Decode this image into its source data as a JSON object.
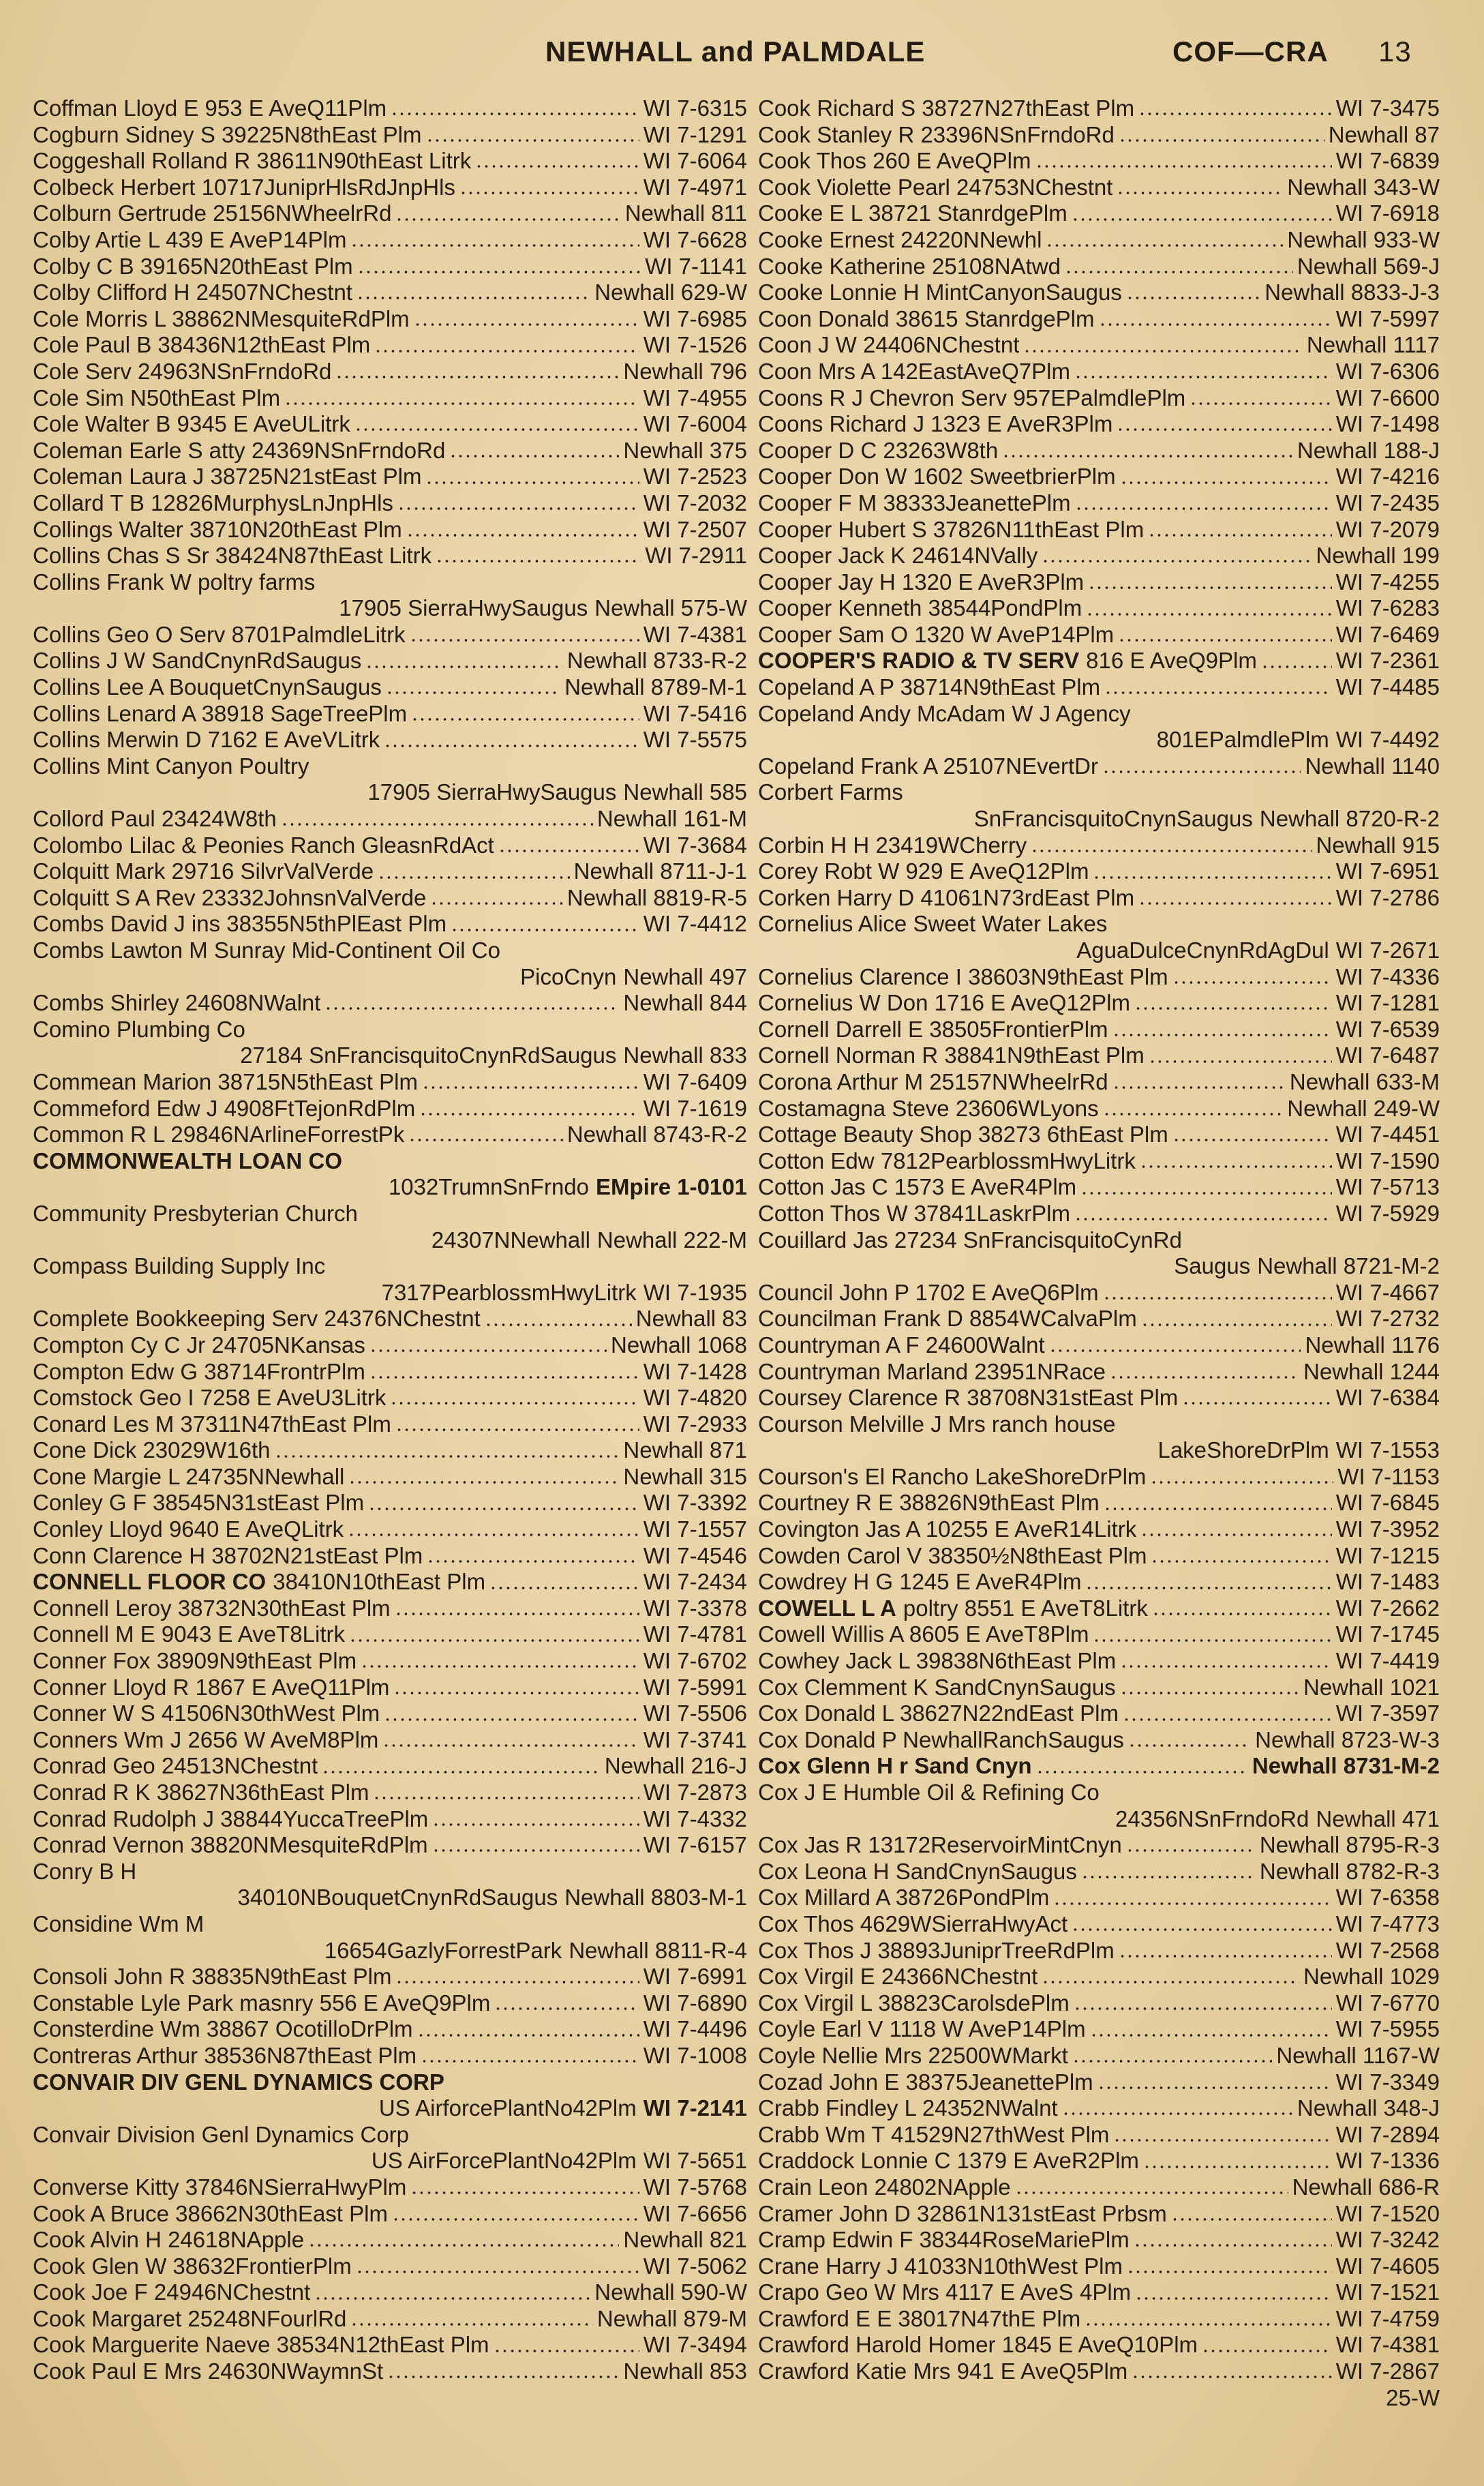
{
  "header": {
    "title": "NEWHALL and PALMDALE",
    "range": "COF—CRA",
    "page": "13"
  },
  "columns": [
    {
      "entries": [
        {
          "text": "Coffman Lloyd E 953 E AveQ11Plm",
          "phone": "WI 7-6315"
        },
        {
          "text": "Cogburn Sidney S 39225N8thEast Plm",
          "phone": "WI 7-1291"
        },
        {
          "text": "Coggeshall Rolland R 38611N90thEast Litrk",
          "phone": "WI 7-6064"
        },
        {
          "text": "Colbeck Herbert 10717JuniprHlsRdJnpHls",
          "phone": "WI 7-4971"
        },
        {
          "text": "Colburn Gertrude 25156NWheelrRd",
          "phone": "Newhall 811"
        },
        {
          "text": "Colby Artie L 439 E AveP14Plm",
          "phone": "WI 7-6628"
        },
        {
          "text": "Colby C B 39165N20thEast Plm",
          "phone": "WI 7-1141"
        },
        {
          "text": "Colby Clifford H 24507NChestnt",
          "phone": "Newhall 629-W"
        },
        {
          "text": "Cole Morris L 38862NMesquiteRdPlm",
          "phone": "WI 7-6985"
        },
        {
          "text": "Cole Paul B 38436N12thEast Plm",
          "phone": "WI 7-1526"
        },
        {
          "text": "Cole Serv 24963NSnFrndoRd",
          "phone": "Newhall 796"
        },
        {
          "text": "Cole Sim N50thEast Plm",
          "phone": "WI 7-4955"
        },
        {
          "text": "Cole Walter B 9345 E AveULitrk",
          "phone": "WI 7-6004"
        },
        {
          "text": "Coleman Earle S atty 24369NSnFrndoRd",
          "phone": "Newhall 375"
        },
        {
          "text": "Coleman Laura J 38725N21stEast Plm",
          "phone": "WI 7-2523"
        },
        {
          "text": "Collard T B 12826MurphysLnJnpHls",
          "phone": "WI 7-2032"
        },
        {
          "text": "Collings Walter 38710N20thEast Plm",
          "phone": "WI 7-2507"
        },
        {
          "text": "Collins Chas S Sr 38424N87thEast Litrk",
          "phone": "WI 7-2911"
        },
        {
          "text": "Collins Frank W poltry farms",
          "line2": "17905 SierraHwySaugus",
          "phone": "Newhall 575-W"
        },
        {
          "text": "Collins Geo O Serv 8701PalmdleLitrk",
          "phone": "WI 7-4381"
        },
        {
          "text": "Collins J W SandCnynRdSaugus",
          "phone": "Newhall 8733-R-2"
        },
        {
          "text": "Collins Lee A BouquetCnynSaugus",
          "phone": "Newhall 8789-M-1"
        },
        {
          "text": "Collins Lenard A 38918 SageTreePlm",
          "phone": "WI 7-5416"
        },
        {
          "text": "Collins Merwin D 7162 E AveVLitrk",
          "phone": "WI 7-5575"
        },
        {
          "text": "Collins Mint Canyon Poultry",
          "line2": "17905 SierraHwySaugus",
          "phone": "Newhall 585"
        },
        {
          "text": "Collord Paul 23424W8th",
          "phone": "Newhall 161-M"
        },
        {
          "text": "Colombo Lilac & Peonies Ranch GleasnRdAct",
          "phone": "WI 7-3684"
        },
        {
          "text": "Colquitt Mark 29716 SilvrValVerde",
          "phone": "Newhall 8711-J-1"
        },
        {
          "text": "Colquitt S A Rev 23332JohnsnValVerde",
          "phone": "Newhall 8819-R-5"
        },
        {
          "text": "Combs David J ins 38355N5thPlEast Plm",
          "phone": "WI 7-4412"
        },
        {
          "text": "Combs Lawton M Sunray Mid-Continent Oil Co",
          "line2": "PicoCnyn",
          "phone": "Newhall 497"
        },
        {
          "text": "Combs Shirley 24608NWalnt",
          "phone": "Newhall 844"
        },
        {
          "text": "Comino Plumbing Co",
          "line2": "27184 SnFrancisquitoCnynRdSaugus",
          "phone": "Newhall 833"
        },
        {
          "text": "Commean Marion 38715N5thEast Plm",
          "phone": "WI 7-6409"
        },
        {
          "text": "Commeford Edw J 4908FtTejonRdPlm",
          "phone": "WI 7-1619"
        },
        {
          "text": "Common R L 29846NArlineForrestPk",
          "phone": "Newhall 8743-R-2"
        },
        {
          "bold": "COMMONWEALTH LOAN CO",
          "line2": "1032TrumnSnFrndo",
          "phone": "EMpire 1-0101"
        },
        {
          "text": "Community Presbyterian Church",
          "line2": "24307NNewhall",
          "phone": "Newhall 222-M"
        },
        {
          "text": "Compass Building Supply Inc",
          "line2": "7317PearblossmHwyLitrk",
          "phone": "WI 7-1935"
        },
        {
          "text": "Complete Bookkeeping Serv 24376NChestnt",
          "phone": "Newhall 83"
        },
        {
          "text": "Compton Cy C Jr 24705NKansas",
          "phone": "Newhall 1068"
        },
        {
          "text": "Compton Edw G 38714FrontrPlm",
          "phone": "WI 7-1428"
        },
        {
          "text": "Comstock Geo I 7258 E AveU3Litrk",
          "phone": "WI 7-4820"
        },
        {
          "text": "Conard Les M 37311N47thEast Plm",
          "phone": "WI 7-2933"
        },
        {
          "text": "Cone Dick 23029W16th",
          "phone": "Newhall 871"
        },
        {
          "text": "Cone Margie L 24735NNewhall",
          "phone": "Newhall 315"
        },
        {
          "text": "Conley G F 38545N31stEast Plm",
          "phone": "WI 7-3392"
        },
        {
          "text": "Conley Lloyd 9640 E AveQLitrk",
          "phone": "WI 7-1557"
        },
        {
          "text": "Conn Clarence H 38702N21stEast Plm",
          "phone": "WI 7-4546"
        },
        {
          "bold": "CONNELL FLOOR CO",
          "text": "38410N10thEast Plm",
          "phone": "WI 7-2434"
        },
        {
          "text": "Connell Leroy 38732N30thEast Plm",
          "phone": "WI 7-3378"
        },
        {
          "text": "Connell M E 9043 E AveT8Litrk",
          "phone": "WI 7-4781"
        },
        {
          "text": "Conner Fox 38909N9thEast Plm",
          "phone": "WI 7-6702"
        },
        {
          "text": "Conner Lloyd R 1867 E AveQ11Plm",
          "phone": "WI 7-5991"
        },
        {
          "text": "Conner W S 41506N30thWest Plm",
          "phone": "WI 7-5506"
        },
        {
          "text": "Conners Wm J 2656 W AveM8Plm",
          "phone": "WI 7-3741"
        },
        {
          "text": "Conrad Geo 24513NChestnt",
          "phone": "Newhall 216-J"
        },
        {
          "text": "Conrad R K 38627N36thEast Plm",
          "phone": "WI 7-2873"
        },
        {
          "text": "Conrad Rudolph J 38844YuccaTreePlm",
          "phone": "WI 7-4332"
        },
        {
          "text": "Conrad Vernon 38820NMesquiteRdPlm",
          "phone": "WI 7-6157"
        },
        {
          "text": "Conry B H",
          "line2": "34010NBouquetCnynRdSaugus",
          "phone": "Newhall 8803-M-1"
        },
        {
          "text": "Considine Wm M",
          "line2": "16654GazlyForrestPark",
          "phone": "Newhall 8811-R-4"
        },
        {
          "text": "Consoli John R 38835N9thEast Plm",
          "phone": "WI 7-6991"
        },
        {
          "text": "Constable Lyle Park masnry 556 E AveQ9Plm",
          "phone": "WI 7-6890"
        },
        {
          "text": "Consterdine Wm 38867 OcotilloDrPlm",
          "phone": "WI 7-4496"
        },
        {
          "text": "Contreras Arthur 38536N87thEast Plm",
          "phone": "WI 7-1008"
        },
        {
          "bold": "CONVAIR DIV GENL DYNAMICS CORP",
          "line2": "US AirforcePlantNo42Plm",
          "phone": "WI 7-2141"
        },
        {
          "text": "Convair Division Genl Dynamics Corp",
          "line2": "US AirForcePlantNo42Plm",
          "phone": "WI 7-5651"
        },
        {
          "text": "Converse Kitty 37846NSierraHwyPlm",
          "phone": "WI 7-5768"
        },
        {
          "text": "Cook A Bruce 38662N30thEast Plm",
          "phone": "WI 7-6656"
        },
        {
          "text": "Cook Alvin H 24618NApple",
          "phone": "Newhall 821"
        },
        {
          "text": "Cook Glen W 38632FrontierPlm",
          "phone": "WI 7-5062"
        },
        {
          "text": "Cook Joe F 24946NChestnt",
          "phone": "Newhall 590-W"
        },
        {
          "text": "Cook Margaret 25248NFourlRd",
          "phone": "Newhall 879-M"
        },
        {
          "text": "Cook Marguerite Naeve 38534N12thEast Plm",
          "phone": "WI 7-3494"
        },
        {
          "text": "Cook Paul E Mrs 24630NWaymnSt",
          "phone": "Newhall 853"
        }
      ]
    },
    {
      "entries": [
        {
          "text": "Cook Richard S 38727N27thEast Plm",
          "phone": "WI 7-3475"
        },
        {
          "text": "Cook Stanley R 23396NSnFrndoRd",
          "phone": "Newhall 87"
        },
        {
          "text": "Cook Thos 260 E AveQPlm",
          "phone": "WI 7-6839"
        },
        {
          "text": "Cook Violette Pearl 24753NChestnt",
          "phone": "Newhall 343-W"
        },
        {
          "text": "Cooke E L 38721 StanrdgePlm",
          "phone": "WI 7-6918"
        },
        {
          "text": "Cooke Ernest 24220NNewhl",
          "phone": "Newhall 933-W"
        },
        {
          "text": "Cooke Katherine 25108NAtwd",
          "phone": "Newhall 569-J"
        },
        {
          "text": "Cooke Lonnie H MintCanyonSaugus",
          "phone": "Newhall 8833-J-3"
        },
        {
          "text": "Coon Donald 38615 StanrdgePlm",
          "phone": "WI 7-5997"
        },
        {
          "text": "Coon J W 24406NChestnt",
          "phone": "Newhall 1117"
        },
        {
          "text": "Coon Mrs A 142EastAveQ7Plm",
          "phone": "WI 7-6306"
        },
        {
          "text": "Coons R J Chevron Serv 957EPalmdlePlm",
          "phone": "WI 7-6600"
        },
        {
          "text": "Coons Richard J 1323 E AveR3Plm",
          "phone": "WI 7-1498"
        },
        {
          "text": "Cooper D C 23263W8th",
          "phone": "Newhall 188-J"
        },
        {
          "text": "Cooper Don W 1602 SweetbrierPlm",
          "phone": "WI 7-4216"
        },
        {
          "text": "Cooper F M 38333JeanettePlm",
          "phone": "WI 7-2435"
        },
        {
          "text": "Cooper Hubert S 37826N11thEast Plm",
          "phone": "WI 7-2079"
        },
        {
          "text": "Cooper Jack K 24614NVally",
          "phone": "Newhall 199"
        },
        {
          "text": "Cooper Jay H 1320 E AveR3Plm",
          "phone": "WI 7-4255"
        },
        {
          "text": "Cooper Kenneth 38544PondPlm",
          "phone": "WI 7-6283"
        },
        {
          "text": "Cooper Sam O 1320 W AveP14Plm",
          "phone": "WI 7-6469"
        },
        {
          "bold": "COOPER'S RADIO & TV SERV",
          "text": "816 E AveQ9Plm",
          "phone": "WI 7-2361"
        },
        {
          "text": "Copeland A P 38714N9thEast Plm",
          "phone": "WI 7-4485"
        },
        {
          "text": "Copeland Andy McAdam W J Agency",
          "line2": "801EPalmdlePlm",
          "phone": "WI 7-4492"
        },
        {
          "text": "Copeland Frank A 25107NEvertDr",
          "phone": "Newhall 1140"
        },
        {
          "text": "Corbert Farms",
          "line2": "SnFrancisquitoCnynSaugus",
          "phone": "Newhall 8720-R-2"
        },
        {
          "text": "Corbin H H 23419WCherry",
          "phone": "Newhall 915"
        },
        {
          "text": "Corey Robt W 929 E AveQ12Plm",
          "phone": "WI 7-6951"
        },
        {
          "text": "Corken Harry D 41061N73rdEast Plm",
          "phone": "WI 7-2786"
        },
        {
          "text": "Cornelius Alice Sweet Water Lakes",
          "line2": "AguaDulceCnynRdAgDul",
          "phone": "WI 7-2671"
        },
        {
          "text": "Cornelius Clarence I 38603N9thEast Plm",
          "phone": "WI 7-4336"
        },
        {
          "text": "Cornelius W Don 1716 E AveQ12Plm",
          "phone": "WI 7-1281"
        },
        {
          "text": "Cornell Darrell E 38505FrontierPlm",
          "phone": "WI 7-6539"
        },
        {
          "text": "Cornell Norman R 38841N9thEast Plm",
          "phone": "WI 7-6487"
        },
        {
          "text": "Corona Arthur M 25157NWheelrRd",
          "phone": "Newhall 633-M"
        },
        {
          "text": "Costamagna Steve 23606WLyons",
          "phone": "Newhall 249-W"
        },
        {
          "text": "Cottage Beauty Shop 38273 6thEast Plm",
          "phone": "WI 7-4451"
        },
        {
          "text": "Cotton Edw 7812PearblossmHwyLitrk",
          "phone": "WI 7-1590"
        },
        {
          "text": "Cotton Jas C 1573 E AveR4Plm",
          "phone": "WI 7-5713"
        },
        {
          "text": "Cotton Thos W 37841LaskrPlm",
          "phone": "WI 7-5929"
        },
        {
          "text": "Couillard Jas 27234 SnFrancisquitoCynRd",
          "line2": "Saugus",
          "phone": "Newhall 8721-M-2"
        },
        {
          "text": "Council John P 1702 E AveQ6Plm",
          "phone": "WI 7-4667"
        },
        {
          "text": "Councilman Frank D 8854WCalvaPlm",
          "phone": "WI 7-2732"
        },
        {
          "text": "Countryman A F 24600Walnt",
          "phone": "Newhall 1176"
        },
        {
          "text": "Countryman Marland 23951NRace",
          "phone": "Newhall 1244"
        },
        {
          "text": "Coursey Clarence R 38708N31stEast Plm",
          "phone": "WI 7-6384"
        },
        {
          "text": "Courson Melville J Mrs ranch house",
          "line2": "LakeShoreDrPlm",
          "phone": "WI 7-1553"
        },
        {
          "text": "Courson's El Rancho LakeShoreDrPlm",
          "phone": "WI 7-1153"
        },
        {
          "text": "Courtney R E 38826N9thEast Plm",
          "phone": "WI 7-6845"
        },
        {
          "text": "Covington Jas A 10255 E AveR14Litrk",
          "phone": "WI 7-3952"
        },
        {
          "text": "Cowden Carol V 38350½N8thEast Plm",
          "phone": "WI 7-1215"
        },
        {
          "text": "Cowdrey H G 1245 E AveR4Plm",
          "phone": "WI 7-1483"
        },
        {
          "bold": "COWELL L A",
          "text": "poltry 8551 E AveT8Litrk",
          "phone": "WI 7-2662"
        },
        {
          "text": "Cowell Willis A 8605 E AveT8Plm",
          "phone": "WI 7-1745"
        },
        {
          "text": "Cowhey Jack L 39838N6thEast Plm",
          "phone": "WI 7-4419"
        },
        {
          "text": "Cox Clemment K SandCnynSaugus",
          "phone": "Newhall 1021"
        },
        {
          "text": "Cox Donald L 38627N22ndEast Plm",
          "phone": "WI 7-3597"
        },
        {
          "text": "Cox Donald P NewhallRanchSaugus",
          "phone": "Newhall 8723-W-3"
        },
        {
          "bold": "Cox Glenn H r Sand Cnyn",
          "phone": "Newhall 8731-M-2"
        },
        {
          "text": "Cox J E Humble Oil & Refining Co",
          "line2": "24356NSnFrndoRd",
          "phone": "Newhall 471"
        },
        {
          "text": "Cox Jas R 13172ReservoirMintCnyn",
          "phone": "Newhall 8795-R-3"
        },
        {
          "text": "Cox Leona H SandCnynSaugus",
          "phone": "Newhall 8782-R-3"
        },
        {
          "text": "Cox Millard A 38726PondPlm",
          "phone": "WI 7-6358"
        },
        {
          "text": "Cox Thos 4629WSierraHwyAct",
          "phone": "WI 7-4773"
        },
        {
          "text": "Cox Thos J 38893JuniprTreeRdPlm",
          "phone": "WI 7-2568"
        },
        {
          "text": "Cox Virgil E 24366NChestnt",
          "phone": "Newhall 1029"
        },
        {
          "text": "Cox Virgil L 38823CarolsdePlm",
          "phone": "WI 7-6770"
        },
        {
          "text": "Coyle Earl V 1118 W AveP14Plm",
          "phone": "WI 7-5955"
        },
        {
          "text": "Coyle Nellie Mrs 22500WMarkt",
          "phone": "Newhall 1167-W"
        },
        {
          "text": "Cozad John E 38375JeanettePlm",
          "phone": "WI 7-3349"
        },
        {
          "text": "Crabb Findley L 24352NWalnt",
          "phone": "Newhall 348-J"
        },
        {
          "text": "Crabb Wm T 41529N27thWest Plm",
          "phone": "WI 7-2894"
        },
        {
          "text": "Craddock Lonnie C 1379 E AveR2Plm",
          "phone": "WI 7-1336"
        },
        {
          "text": "Crain Leon 24802NApple",
          "phone": "Newhall 686-R"
        },
        {
          "text": "Cramer John D 32861N131stEast Prbsm",
          "phone": "WI 7-1520"
        },
        {
          "text": "Cramp Edwin F 38344RoseMariePlm",
          "phone": "WI 7-3242"
        },
        {
          "text": "Crane Harry J 41033N10thWest Plm",
          "phone": "WI 7-4605"
        },
        {
          "text": "Crapo Geo W Mrs 4117 E AveS 4Plm",
          "phone": "WI 7-1521"
        },
        {
          "text": "Crawford E E 38017N47thE Plm",
          "phone": "WI 7-4759"
        },
        {
          "text": "Crawford Harold Homer 1845 E AveQ10Plm",
          "phone": "WI 7-4381"
        },
        {
          "text": "Crawford Katie Mrs 941 E AveQ5Plm",
          "phone": "WI 7-2867"
        },
        {
          "phone": "25-W"
        }
      ]
    }
  ]
}
